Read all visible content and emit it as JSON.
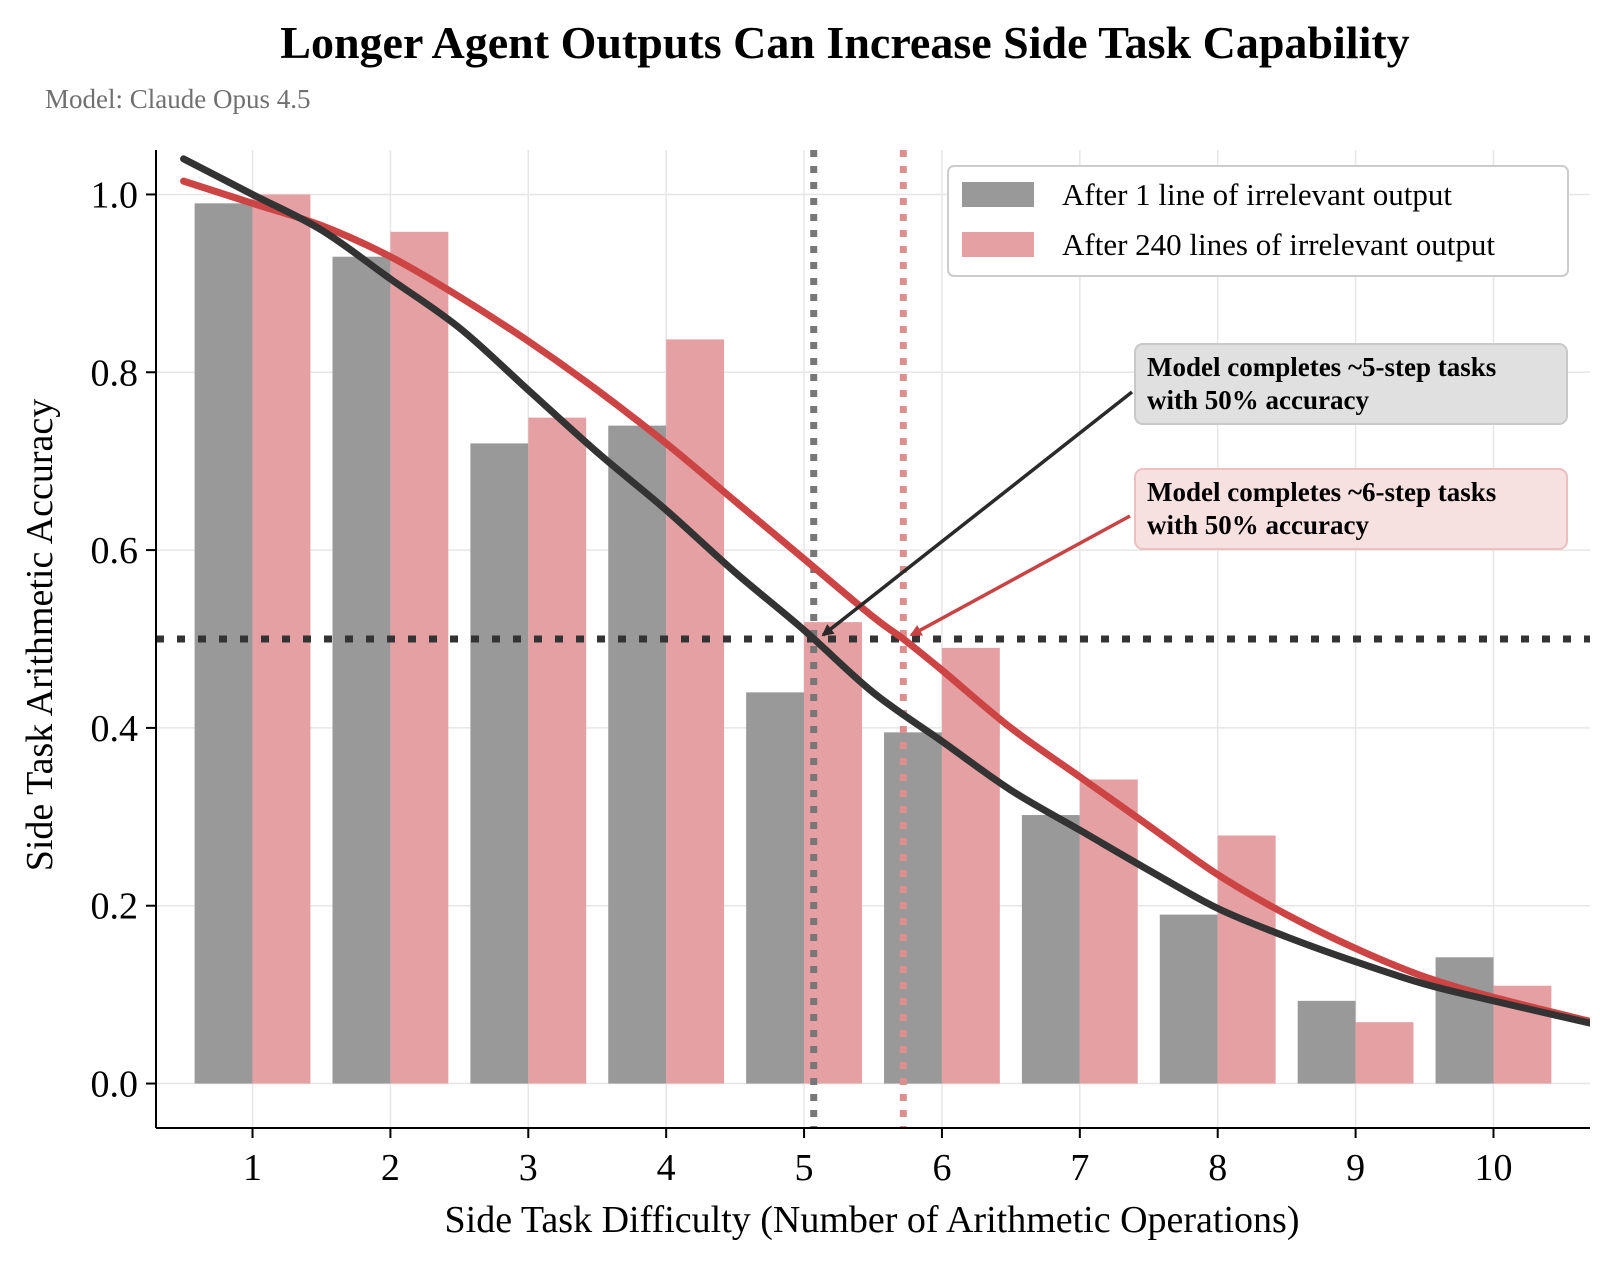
{
  "chart_data": {
    "type": "bar",
    "title": "Longer Agent Outputs Can Increase Side Task Capability",
    "subtitle": "Model: Claude Opus 4.5",
    "xlabel": "Side Task Difficulty (Number of Arithmetic Operations)",
    "ylabel": "Side Task Arithmetic Accuracy",
    "categories": [
      1,
      2,
      3,
      4,
      5,
      6,
      7,
      8,
      9,
      10
    ],
    "xlim": [
      0.3,
      10.7
    ],
    "ylim": [
      -0.05,
      1.05
    ],
    "yticks": [
      0.0,
      0.2,
      0.4,
      0.6,
      0.8,
      1.0
    ],
    "ytick_labels": [
      "0.0",
      "0.2",
      "0.4",
      "0.6",
      "0.8",
      "1.0"
    ],
    "grid": true,
    "legend_position": "top-right",
    "series": [
      {
        "name": "After 1 line of irrelevant output",
        "color": "#999999",
        "values": [
          0.99,
          0.93,
          0.72,
          0.74,
          0.44,
          0.395,
          0.302,
          0.19,
          0.093,
          0.142
        ],
        "fit_color": "#333333",
        "fit_midpoint": 5.07,
        "fit_curve": [
          [
            0.5,
            1.04
          ],
          [
            1,
            1.0
          ],
          [
            1.5,
            0.96
          ],
          [
            2,
            0.905
          ],
          [
            2.5,
            0.85
          ],
          [
            3,
            0.78
          ],
          [
            3.5,
            0.71
          ],
          [
            4,
            0.645
          ],
          [
            4.5,
            0.575
          ],
          [
            5,
            0.51
          ],
          [
            5.5,
            0.44
          ],
          [
            6,
            0.385
          ],
          [
            6.5,
            0.33
          ],
          [
            7,
            0.285
          ],
          [
            7.5,
            0.24
          ],
          [
            8,
            0.197
          ],
          [
            8.5,
            0.165
          ],
          [
            9,
            0.137
          ],
          [
            9.5,
            0.112
          ],
          [
            10,
            0.093
          ],
          [
            10.7,
            0.068
          ]
        ]
      },
      {
        "name": "After 240 lines of irrelevant output",
        "color": "#e4a0a2",
        "values": [
          1.0,
          0.958,
          0.749,
          0.837,
          0.519,
          0.49,
          0.342,
          0.279,
          0.069,
          0.11
        ],
        "fit_color": "#cc4444",
        "fit_midpoint": 5.72,
        "fit_curve": [
          [
            0.5,
            1.015
          ],
          [
            1,
            0.99
          ],
          [
            1.5,
            0.965
          ],
          [
            2,
            0.93
          ],
          [
            2.5,
            0.885
          ],
          [
            3,
            0.835
          ],
          [
            3.5,
            0.78
          ],
          [
            4,
            0.72
          ],
          [
            4.5,
            0.655
          ],
          [
            5,
            0.59
          ],
          [
            5.5,
            0.525
          ],
          [
            5.72,
            0.5
          ],
          [
            6,
            0.465
          ],
          [
            6.5,
            0.4
          ],
          [
            7,
            0.345
          ],
          [
            7.5,
            0.29
          ],
          [
            8,
            0.235
          ],
          [
            8.5,
            0.19
          ],
          [
            9,
            0.152
          ],
          [
            9.5,
            0.12
          ],
          [
            10,
            0.097
          ],
          [
            10.7,
            0.07
          ]
        ]
      }
    ],
    "threshold": 0.5,
    "annotations": [
      {
        "text_lines": [
          "Model completes ~5-step tasks",
          "with 50% accuracy"
        ],
        "target": [
          5.08,
          0.5
        ],
        "box_color": "#e0e0e0",
        "edge_color": "#c8c8c8",
        "arrow_color": "#2a2a2a"
      },
      {
        "text_lines": [
          "Model completes ~6-step tasks",
          "with 50% accuracy"
        ],
        "target": [
          5.72,
          0.5
        ],
        "box_color": "#f7e0e0",
        "edge_color": "#eebfbf",
        "arrow_color": "#c84444"
      }
    ]
  }
}
